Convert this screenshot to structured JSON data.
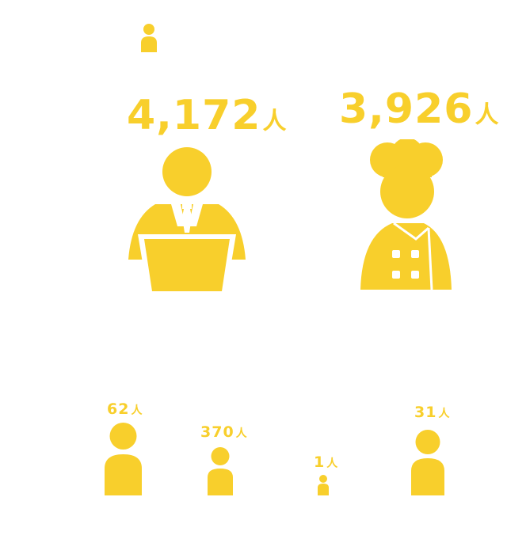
{
  "colors": {
    "accent": "#f8cf2c",
    "background": "#ffffff"
  },
  "icons": {
    "legend": "person-icon",
    "office": "office-worker-laptop-icon",
    "chef": "chef-icon",
    "small": [
      "person-icon",
      "person-icon",
      "person-icon",
      "person-icon"
    ]
  },
  "office": {
    "value": "4,172",
    "unit": "人"
  },
  "chef": {
    "value": "3,926",
    "unit": "人"
  },
  "small_counts": [
    {
      "value": "62",
      "unit": "人"
    },
    {
      "value": "370",
      "unit": "人"
    },
    {
      "value": "1",
      "unit": "人"
    },
    {
      "value": "31",
      "unit": "人"
    }
  ]
}
